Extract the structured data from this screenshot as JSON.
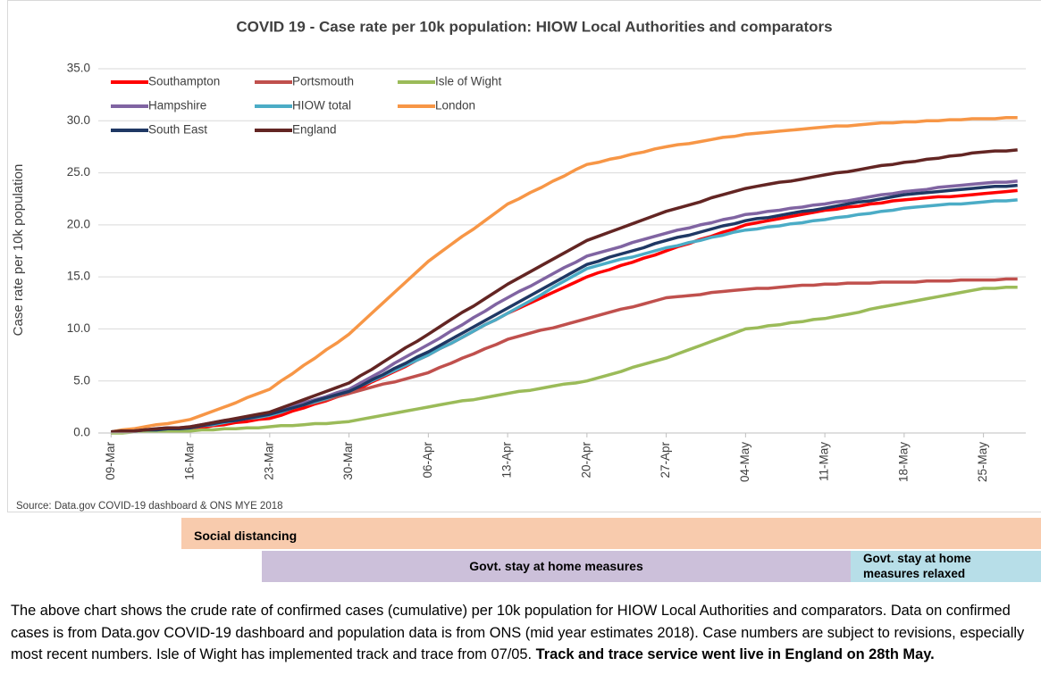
{
  "chart_data": {
    "type": "line",
    "title": "COVID 19 - Case rate per 10k population: HIOW Local Authorities and comparators",
    "y_label": "Case rate per 10k population",
    "source": "Source: Data.gov COVID-19 dashboard & ONS MYE 2018",
    "legend": "upper left",
    "grid": true,
    "ylim": [
      0,
      35
    ],
    "yticks": [
      {
        "value": 0,
        "label": "0.0"
      },
      {
        "value": 5,
        "label": "5.0"
      },
      {
        "value": 10,
        "label": "10.0"
      },
      {
        "value": 15,
        "label": "15.0"
      },
      {
        "value": 20,
        "label": "20.0"
      },
      {
        "value": 25,
        "label": "25.0"
      },
      {
        "value": 30,
        "label": "30.0"
      },
      {
        "value": 35,
        "label": "35.0"
      }
    ],
    "categories": [
      "09-Mar",
      null,
      null,
      null,
      null,
      null,
      null,
      "16-Mar",
      null,
      null,
      null,
      null,
      null,
      null,
      "23-Mar",
      null,
      null,
      null,
      null,
      null,
      null,
      "30-Mar",
      null,
      null,
      null,
      null,
      null,
      null,
      "06-Apr",
      null,
      null,
      null,
      null,
      null,
      null,
      "13-Apr",
      null,
      null,
      null,
      null,
      null,
      null,
      "20-Apr",
      null,
      null,
      null,
      null,
      null,
      null,
      "27-Apr",
      null,
      null,
      null,
      null,
      null,
      null,
      "04-May",
      null,
      null,
      null,
      null,
      null,
      null,
      "11-May",
      null,
      null,
      null,
      null,
      null,
      null,
      "18-May",
      null,
      null,
      null,
      null,
      null,
      null,
      "25-May",
      null,
      null,
      null
    ],
    "series": [
      {
        "name": "Southampton",
        "color": "#ff0000",
        "values": [
          0.1,
          0.1,
          0.2,
          0.2,
          0.3,
          0.3,
          0.4,
          0.4,
          0.5,
          0.7,
          0.8,
          1.0,
          1.1,
          1.3,
          1.4,
          1.7,
          2.1,
          2.4,
          2.8,
          3.1,
          3.5,
          3.8,
          4.3,
          4.9,
          5.4,
          5.9,
          6.4,
          7.0,
          7.5,
          8.1,
          8.6,
          9.2,
          9.8,
          10.4,
          10.9,
          11.5,
          12.0,
          12.5,
          13.0,
          13.5,
          14.0,
          14.5,
          15.0,
          15.4,
          15.7,
          16.1,
          16.4,
          16.8,
          17.1,
          17.5,
          17.9,
          18.2,
          18.6,
          18.9,
          19.3,
          19.6,
          20.0,
          20.2,
          20.4,
          20.6,
          20.8,
          21.0,
          21.2,
          21.4,
          21.5,
          21.7,
          21.8,
          22.0,
          22.1,
          22.3,
          22.4,
          22.5,
          22.6,
          22.7,
          22.7,
          22.8,
          22.9,
          23.0,
          23.1,
          23.2,
          23.3
        ]
      },
      {
        "name": "Portsmouth",
        "color": "#c0504d",
        "values": [
          0.1,
          0.2,
          0.2,
          0.3,
          0.3,
          0.4,
          0.4,
          0.5,
          0.7,
          0.9,
          1.1,
          1.2,
          1.4,
          1.6,
          1.8,
          2.1,
          2.4,
          2.7,
          2.9,
          3.2,
          3.5,
          3.8,
          4.1,
          4.4,
          4.7,
          4.9,
          5.2,
          5.5,
          5.8,
          6.3,
          6.7,
          7.2,
          7.6,
          8.1,
          8.5,
          9.0,
          9.3,
          9.6,
          9.9,
          10.1,
          10.4,
          10.7,
          11.0,
          11.3,
          11.6,
          11.9,
          12.1,
          12.4,
          12.7,
          13.0,
          13.1,
          13.2,
          13.3,
          13.5,
          13.6,
          13.7,
          13.8,
          13.9,
          13.9,
          14.0,
          14.1,
          14.2,
          14.2,
          14.3,
          14.3,
          14.4,
          14.4,
          14.4,
          14.5,
          14.5,
          14.5,
          14.5,
          14.6,
          14.6,
          14.6,
          14.7,
          14.7,
          14.7,
          14.7,
          14.8,
          14.8
        ]
      },
      {
        "name": "Isle of Wight",
        "color": "#9bbb59",
        "values": [
          0.0,
          0.0,
          0.1,
          0.1,
          0.1,
          0.1,
          0.2,
          0.2,
          0.3,
          0.3,
          0.4,
          0.4,
          0.5,
          0.5,
          0.6,
          0.7,
          0.7,
          0.8,
          0.9,
          0.9,
          1.0,
          1.1,
          1.3,
          1.5,
          1.7,
          1.9,
          2.1,
          2.3,
          2.5,
          2.7,
          2.9,
          3.1,
          3.2,
          3.4,
          3.6,
          3.8,
          4.0,
          4.1,
          4.3,
          4.5,
          4.7,
          4.8,
          5.0,
          5.3,
          5.6,
          5.9,
          6.3,
          6.6,
          6.9,
          7.2,
          7.6,
          8.0,
          8.4,
          8.8,
          9.2,
          9.6,
          10.0,
          10.1,
          10.3,
          10.4,
          10.6,
          10.7,
          10.9,
          11.0,
          11.2,
          11.4,
          11.6,
          11.9,
          12.1,
          12.3,
          12.5,
          12.7,
          12.9,
          13.1,
          13.3,
          13.5,
          13.7,
          13.9,
          13.9,
          14.0,
          14.0
        ]
      },
      {
        "name": "Hampshire",
        "color": "#8064a2",
        "values": [
          0.1,
          0.2,
          0.2,
          0.3,
          0.4,
          0.5,
          0.5,
          0.6,
          0.8,
          1.0,
          1.2,
          1.3,
          1.5,
          1.7,
          1.9,
          2.2,
          2.6,
          2.9,
          3.2,
          3.5,
          3.9,
          4.2,
          4.8,
          5.4,
          6.0,
          6.7,
          7.3,
          7.9,
          8.5,
          9.1,
          9.8,
          10.4,
          11.1,
          11.7,
          12.4,
          13.0,
          13.6,
          14.1,
          14.7,
          15.3,
          15.9,
          16.4,
          17.0,
          17.3,
          17.6,
          17.9,
          18.3,
          18.6,
          18.9,
          19.2,
          19.5,
          19.7,
          20.0,
          20.2,
          20.5,
          20.7,
          21.0,
          21.1,
          21.3,
          21.4,
          21.6,
          21.7,
          21.9,
          22.0,
          22.2,
          22.3,
          22.5,
          22.7,
          22.9,
          23.0,
          23.2,
          23.3,
          23.4,
          23.6,
          23.7,
          23.8,
          23.9,
          24.0,
          24.1,
          24.1,
          24.2
        ]
      },
      {
        "name": "HIOW total",
        "color": "#4bacc6",
        "values": [
          0.1,
          0.2,
          0.2,
          0.3,
          0.3,
          0.4,
          0.4,
          0.5,
          0.7,
          0.8,
          1.0,
          1.2,
          1.4,
          1.5,
          1.7,
          2.0,
          2.4,
          2.7,
          3.0,
          3.3,
          3.7,
          4.0,
          4.5,
          5.0,
          5.5,
          6.0,
          6.5,
          7.0,
          7.5,
          8.1,
          8.6,
          9.2,
          9.8,
          10.4,
          10.9,
          11.5,
          12.1,
          12.7,
          13.3,
          14.0,
          14.6,
          15.2,
          15.8,
          16.1,
          16.4,
          16.7,
          16.9,
          17.2,
          17.5,
          17.8,
          18.0,
          18.3,
          18.5,
          18.8,
          19.0,
          19.3,
          19.5,
          19.6,
          19.8,
          19.9,
          20.1,
          20.2,
          20.4,
          20.5,
          20.7,
          20.8,
          21.0,
          21.1,
          21.3,
          21.4,
          21.6,
          21.7,
          21.8,
          21.9,
          22.0,
          22.0,
          22.1,
          22.2,
          22.3,
          22.3,
          22.4
        ]
      },
      {
        "name": "London",
        "color": "#f79646",
        "values": [
          0.1,
          0.3,
          0.4,
          0.6,
          0.8,
          0.9,
          1.1,
          1.3,
          1.7,
          2.1,
          2.5,
          2.9,
          3.4,
          3.8,
          4.2,
          5.0,
          5.7,
          6.5,
          7.2,
          8.0,
          8.7,
          9.5,
          10.5,
          11.5,
          12.5,
          13.5,
          14.5,
          15.5,
          16.5,
          17.3,
          18.1,
          18.9,
          19.6,
          20.4,
          21.2,
          22.0,
          22.5,
          23.1,
          23.6,
          24.2,
          24.7,
          25.3,
          25.8,
          26.0,
          26.3,
          26.5,
          26.8,
          27.0,
          27.3,
          27.5,
          27.7,
          27.8,
          28.0,
          28.2,
          28.4,
          28.5,
          28.7,
          28.8,
          28.9,
          29.0,
          29.1,
          29.2,
          29.3,
          29.4,
          29.5,
          29.5,
          29.6,
          29.7,
          29.8,
          29.8,
          29.9,
          29.9,
          30.0,
          30.0,
          30.1,
          30.1,
          30.2,
          30.2,
          30.2,
          30.3,
          30.3
        ]
      },
      {
        "name": "South East",
        "color": "#1f3864",
        "values": [
          0.1,
          0.2,
          0.2,
          0.3,
          0.3,
          0.4,
          0.4,
          0.5,
          0.7,
          0.9,
          1.1,
          1.2,
          1.4,
          1.6,
          1.8,
          2.1,
          2.4,
          2.7,
          3.1,
          3.4,
          3.7,
          4.0,
          4.5,
          5.1,
          5.6,
          6.2,
          6.7,
          7.3,
          7.8,
          8.4,
          9.0,
          9.6,
          10.2,
          10.8,
          11.4,
          12.0,
          12.6,
          13.2,
          13.8,
          14.4,
          15.0,
          15.6,
          16.2,
          16.5,
          16.9,
          17.2,
          17.5,
          17.8,
          18.2,
          18.5,
          18.8,
          19.0,
          19.3,
          19.6,
          19.9,
          20.1,
          20.4,
          20.6,
          20.7,
          20.9,
          21.1,
          21.3,
          21.4,
          21.6,
          21.8,
          22.0,
          22.2,
          22.3,
          22.5,
          22.7,
          22.9,
          23.0,
          23.1,
          23.2,
          23.3,
          23.4,
          23.5,
          23.6,
          23.7,
          23.7,
          23.8
        ]
      },
      {
        "name": "England",
        "color": "#632523",
        "values": [
          0.1,
          0.2,
          0.2,
          0.3,
          0.4,
          0.5,
          0.5,
          0.6,
          0.8,
          1.0,
          1.2,
          1.4,
          1.6,
          1.8,
          2.0,
          2.4,
          2.8,
          3.2,
          3.6,
          4.0,
          4.4,
          4.8,
          5.5,
          6.1,
          6.8,
          7.5,
          8.2,
          8.8,
          9.5,
          10.2,
          10.9,
          11.6,
          12.2,
          12.9,
          13.6,
          14.3,
          14.9,
          15.5,
          16.1,
          16.7,
          17.3,
          17.9,
          18.5,
          18.9,
          19.3,
          19.7,
          20.1,
          20.5,
          20.9,
          21.3,
          21.6,
          21.9,
          22.2,
          22.6,
          22.9,
          23.2,
          23.5,
          23.7,
          23.9,
          24.1,
          24.2,
          24.4,
          24.6,
          24.8,
          25.0,
          25.1,
          25.3,
          25.5,
          25.7,
          25.8,
          26.0,
          26.1,
          26.3,
          26.4,
          26.6,
          26.7,
          26.9,
          27.0,
          27.1,
          27.1,
          27.2
        ]
      }
    ]
  },
  "timeline": [
    {
      "label": "Social distancing",
      "color": "#f8cbad"
    },
    {
      "label": "Govt. stay at home measures",
      "color": "#ccc0da"
    },
    {
      "label": "Govt. stay at home measures relaxed",
      "color": "#b7dee8"
    }
  ],
  "footnote": {
    "text": "The above chart shows the crude rate of confirmed cases (cumulative) per 10k population for HIOW Local Authorities and comparators. Data on confirmed cases is from Data.gov COVID-19 dashboard and population data is from ONS (mid year estimates 2018). Case numbers are subject to revisions, especially most recent numbers. Isle of Wight has implemented track and trace from 07/05.",
    "bold": "Track and trace service went live in England on 28th May."
  }
}
